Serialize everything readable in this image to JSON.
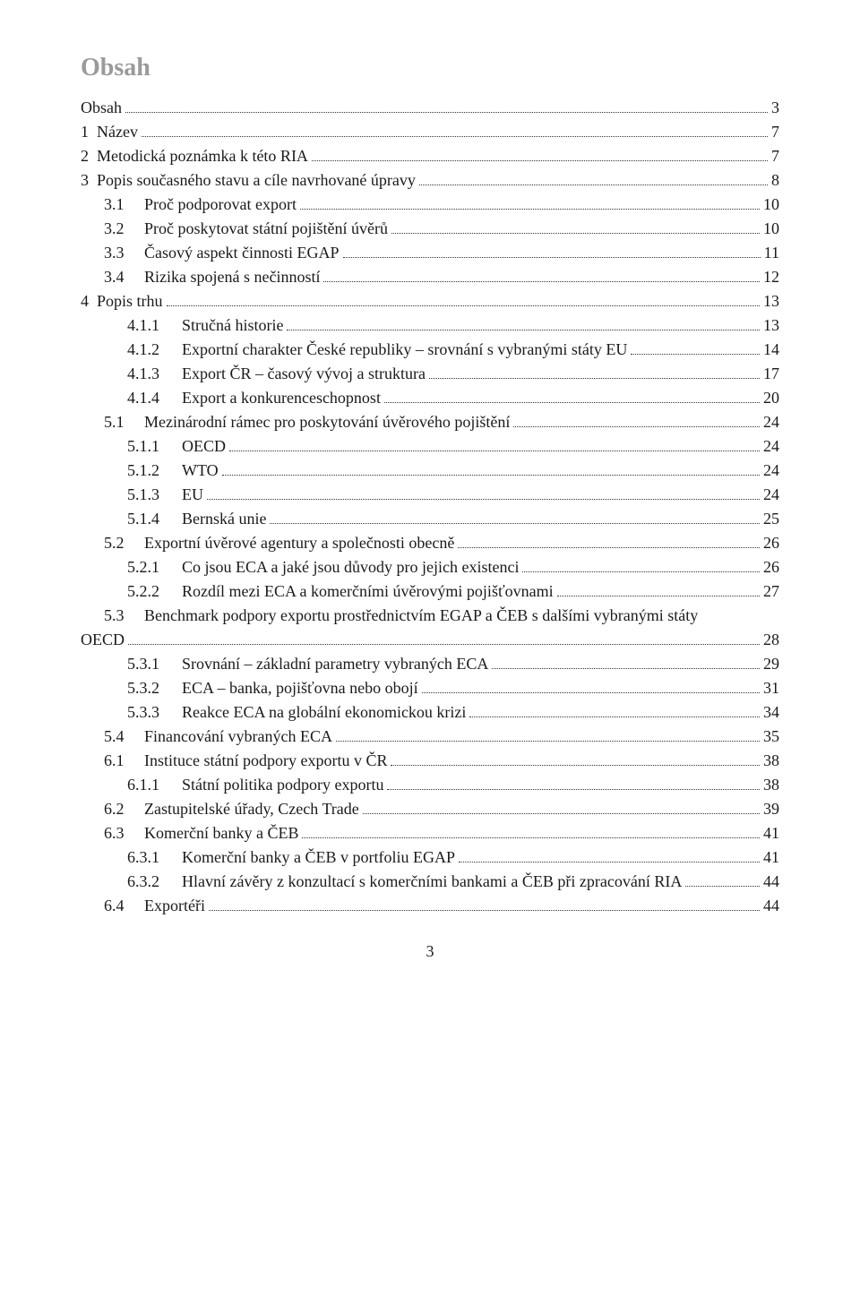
{
  "title": "Obsah",
  "footer_page": "3",
  "entries": [
    {
      "indent": 0,
      "num": "",
      "label": "Obsah",
      "page": "3"
    },
    {
      "indent": 0,
      "num": "1",
      "label": "Název",
      "page": "7"
    },
    {
      "indent": 0,
      "num": "2",
      "label": "Metodická poznámka k této RIA",
      "page": "7"
    },
    {
      "indent": 0,
      "num": "3",
      "label": "Popis současného stavu a cíle navrhované úpravy",
      "page": "8"
    },
    {
      "indent": 1,
      "num": "3.1",
      "label": "Proč podporovat export",
      "page": "10"
    },
    {
      "indent": 1,
      "num": "3.2",
      "label": "Proč poskytovat státní pojištění úvěrů",
      "page": "10"
    },
    {
      "indent": 1,
      "num": "3.3",
      "label": "Časový aspekt činnosti EGAP",
      "page": "11"
    },
    {
      "indent": 1,
      "num": "3.4",
      "label": "Rizika spojená s nečinností",
      "page": "12"
    },
    {
      "indent": 0,
      "num": "4",
      "label": "Popis trhu",
      "page": "13"
    },
    {
      "indent": 2,
      "num": "4.1.1",
      "label": "Stručná historie",
      "page": "13"
    },
    {
      "indent": 2,
      "num": "4.1.2",
      "label": "Exportní charakter České republiky – srovnání s vybranými státy EU",
      "page": "14"
    },
    {
      "indent": 2,
      "num": "4.1.3",
      "label": "Export ČR – časový vývoj a struktura",
      "page": "17"
    },
    {
      "indent": 2,
      "num": "4.1.4",
      "label": "Export a konkurenceschopnost",
      "page": "20"
    },
    {
      "indent": 1,
      "num": "5.1",
      "label": "Mezinárodní rámec pro poskytování úvěrového pojištění",
      "page": "24"
    },
    {
      "indent": 2,
      "num": "5.1.1",
      "label": "OECD",
      "page": "24"
    },
    {
      "indent": 2,
      "num": "5.1.2",
      "label": "WTO",
      "page": "24"
    },
    {
      "indent": 2,
      "num": "5.1.3",
      "label": "EU",
      "page": "24"
    },
    {
      "indent": 2,
      "num": "5.1.4",
      "label": "Bernská unie",
      "page": "25"
    },
    {
      "indent": 1,
      "num": "5.2",
      "label": "Exportní úvěrové agentury a společnosti obecně",
      "page": "26"
    },
    {
      "indent": 2,
      "num": "5.2.1",
      "label": "Co jsou ECA a jaké jsou důvody pro jejich existenci",
      "page": "26"
    },
    {
      "indent": 2,
      "num": "5.2.2",
      "label": "Rozdíl mezi ECA a komerčními úvěrovými pojišťovnami",
      "page": "27"
    },
    {
      "indent": 1,
      "num": "5.3",
      "label_line1": "Benchmark podpory exportu prostřednictvím EGAP a ČEB s dalšími vybranými státy",
      "label_line2": "OECD",
      "page": "28",
      "multiline": true
    },
    {
      "indent": 2,
      "num": "5.3.1",
      "label": "Srovnání – základní parametry vybraných ECA",
      "page": "29"
    },
    {
      "indent": 2,
      "num": "5.3.2",
      "label": "ECA – banka, pojišťovna nebo obojí",
      "page": "31"
    },
    {
      "indent": 2,
      "num": "5.3.3",
      "label": "Reakce ECA na globální ekonomickou krizi",
      "page": "34"
    },
    {
      "indent": 1,
      "num": "5.4",
      "label": "Financování vybraných ECA",
      "page": "35"
    },
    {
      "indent": 1,
      "num": "6.1",
      "label": "Instituce státní podpory exportu v ČR",
      "page": "38"
    },
    {
      "indent": 2,
      "num": "6.1.1",
      "label": "Státní politika podpory exportu",
      "page": "38"
    },
    {
      "indent": 1,
      "num": "6.2",
      "label": "Zastupitelské úřady, Czech Trade",
      "page": "39"
    },
    {
      "indent": 1,
      "num": "6.3",
      "label": "Komerční banky a ČEB",
      "page": "41"
    },
    {
      "indent": 2,
      "num": "6.3.1",
      "label": "Komerční banky a ČEB v portfoliu EGAP",
      "page": "41"
    },
    {
      "indent": 2,
      "num": "6.3.2",
      "label": "Hlavní závěry z konzultací s komerčními bankami a ČEB při zpracování RIA",
      "page": "44"
    },
    {
      "indent": 1,
      "num": "6.4",
      "label": "Exportéři",
      "page": "44"
    }
  ]
}
